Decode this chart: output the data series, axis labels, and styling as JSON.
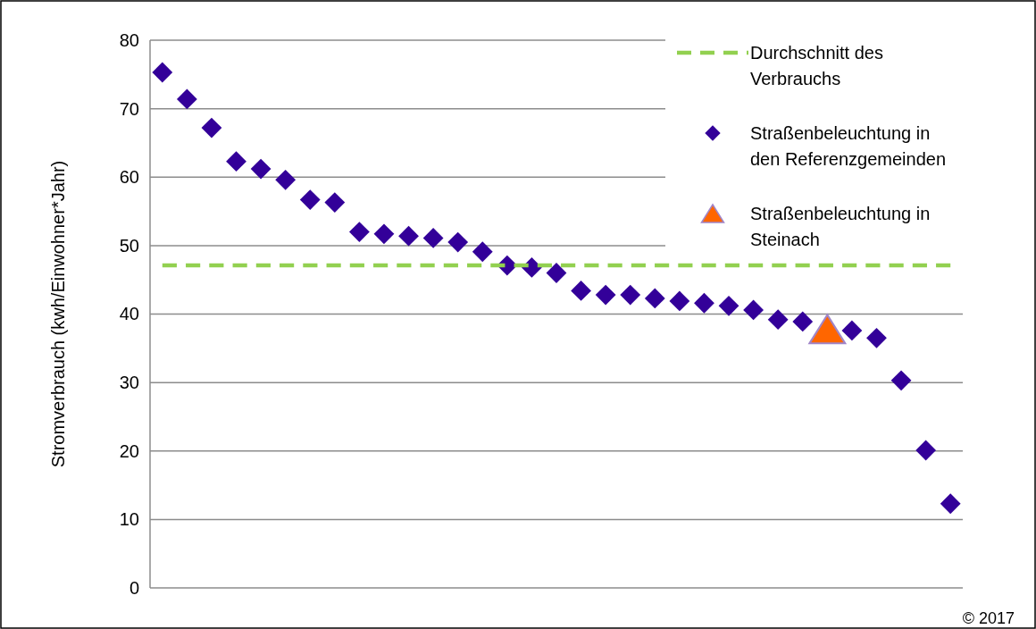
{
  "chart_data": {
    "type": "scatter",
    "ylabel": "Stromverbrauch  (kwh/Einwohner*Jahr)",
    "categories": [
      null,
      null,
      null,
      null,
      null,
      null,
      null,
      null,
      null,
      null,
      null,
      null,
      null,
      null,
      null,
      null,
      null,
      null,
      null,
      null,
      null,
      null,
      null,
      null,
      null,
      null,
      null,
      null,
      null,
      null,
      null,
      null,
      null
    ],
    "series": [
      {
        "name": "Durchschnitt des Verbrauchs",
        "type": "line",
        "color": "#92d050",
        "line_style": "dashed",
        "marker": "none",
        "values": [
          47.1,
          47.1,
          47.1,
          47.1,
          47.1,
          47.1,
          47.1,
          47.1,
          47.1,
          47.1,
          47.1,
          47.1,
          47.1,
          47.1,
          47.1,
          47.1,
          47.1,
          47.1,
          47.1,
          47.1,
          47.1,
          47.1,
          47.1,
          47.1,
          47.1,
          47.1,
          47.1,
          47.1,
          47.1,
          47.1,
          47.1,
          47.1,
          47.1
        ]
      },
      {
        "name": "Straßenbeleuchtung in den Referenzgemeinden",
        "type": "scatter",
        "color": "#330099",
        "marker": "diamond",
        "values": [
          75.3,
          71.4,
          67.2,
          62.3,
          61.2,
          59.6,
          56.7,
          56.3,
          52.0,
          51.7,
          51.4,
          51.1,
          50.5,
          49.1,
          47.1,
          46.8,
          46.0,
          43.4,
          42.8,
          42.8,
          42.3,
          41.9,
          41.6,
          41.2,
          40.6,
          39.2,
          38.9,
          null,
          37.6,
          36.5,
          30.3,
          20.1,
          12.3
        ]
      },
      {
        "name": "Straßenbeleuchtung in Steinach",
        "type": "scatter",
        "color": "#ff6600",
        "marker": "triangle",
        "values": [
          null,
          null,
          null,
          null,
          null,
          null,
          null,
          null,
          null,
          null,
          null,
          null,
          null,
          null,
          null,
          null,
          null,
          null,
          null,
          null,
          null,
          null,
          null,
          null,
          null,
          null,
          null,
          37.8,
          null,
          null,
          null,
          null,
          null
        ]
      }
    ],
    "ylim": [
      0,
      80
    ],
    "yticks": [
      0,
      10,
      20,
      30,
      40,
      50,
      60,
      70,
      80
    ],
    "grid": "y",
    "legend": "top right",
    "annotations": [
      "© 2017"
    ]
  }
}
